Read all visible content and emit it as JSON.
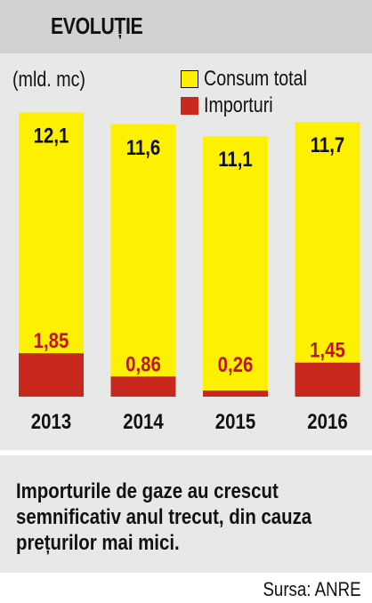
{
  "header": {
    "title": "EVOLUȚIE"
  },
  "colors": {
    "consum": "#fdf000",
    "importuri": "#c8281e",
    "importuri_label": "#c0141a",
    "header_bg": "#d2d2d2",
    "card_bg": "#e8e8e8"
  },
  "chart_data": {
    "type": "bar",
    "unit_label": "(mld. mc)",
    "categories": [
      "2013",
      "2014",
      "2015",
      "2016"
    ],
    "series": [
      {
        "name": "Consum total",
        "values": [
          12.1,
          11.6,
          11.1,
          11.7
        ],
        "labels": [
          "12,1",
          "11,6",
          "11,1",
          "11,7"
        ]
      },
      {
        "name": "Importuri",
        "values": [
          1.85,
          0.86,
          0.26,
          1.45
        ],
        "labels": [
          "1,85",
          "0,86",
          "0,26",
          "1,45"
        ]
      }
    ],
    "legend_position": "top-right",
    "grid": false
  },
  "caption": [
    "Importurile de gaze au crescut",
    "semnificativ anul trecut, din cauza",
    "prețurilor mai mici."
  ],
  "source": "Sursa: ANRE"
}
